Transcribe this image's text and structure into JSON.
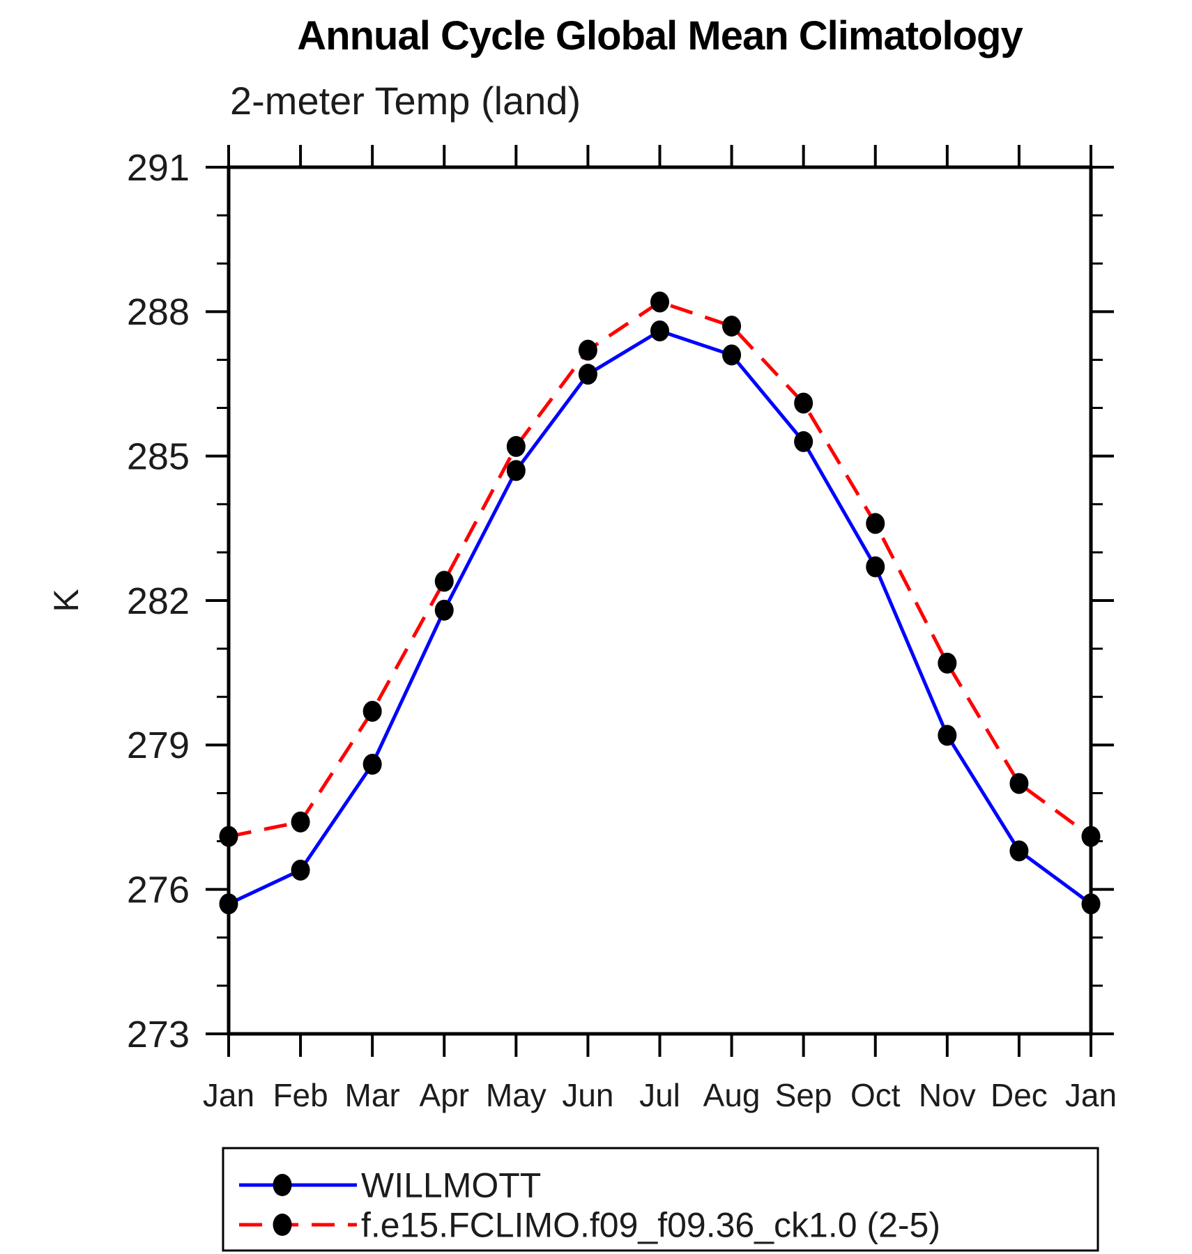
{
  "title": "Annual Cycle Global Mean Climatology",
  "subtitle": "2-meter Temp (land)",
  "chart_data": {
    "type": "line",
    "x_categories": [
      "Jan",
      "Feb",
      "Mar",
      "Apr",
      "May",
      "Jun",
      "Jul",
      "Aug",
      "Sep",
      "Oct",
      "Nov",
      "Dec",
      "Jan"
    ],
    "xlabel": "",
    "ylabel": "K",
    "ylim": [
      273,
      291
    ],
    "y_major_ticks": [
      273,
      276,
      279,
      282,
      285,
      288,
      291
    ],
    "y_minor_tick_step": 1,
    "grid": false,
    "frame": true,
    "legend_position": "bottom-left-box",
    "marker_color": "#000000",
    "axis_color": "#000000",
    "series": [
      {
        "name": "WILLMOTT",
        "color": "#0000ff",
        "line_style": "solid",
        "marker": "filled-circle",
        "values": [
          275.7,
          276.4,
          278.6,
          281.8,
          284.7,
          286.7,
          287.6,
          287.1,
          285.3,
          282.7,
          279.2,
          276.8,
          275.7
        ]
      },
      {
        "name": "f.e15.FCLIMO.f09_f09.36_ck1.0 (2-5)",
        "color": "#ff0000",
        "line_style": "dashed",
        "marker": "filled-circle",
        "values": [
          277.1,
          277.4,
          279.7,
          282.4,
          285.2,
          287.2,
          288.2,
          287.7,
          286.1,
          283.6,
          280.7,
          278.2,
          277.1
        ]
      }
    ]
  }
}
